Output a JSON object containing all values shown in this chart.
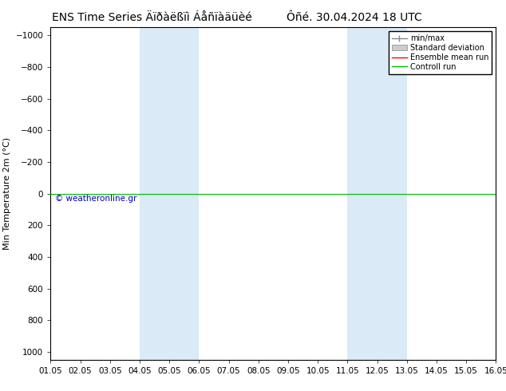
{
  "title_left": "ENS Time Series Äïðàëßïì Áåñïàäüèé",
  "title_right": "Ôñé. 30.04.2024 18 UTC",
  "ylabel": "Min Temperature 2m (°C)",
  "xlim_start": 0,
  "xlim_end": 15,
  "ylim_bottom": 1050,
  "ylim_top": -1050,
  "yticks": [
    -1000,
    -800,
    -600,
    -400,
    -200,
    0,
    200,
    400,
    600,
    800,
    1000
  ],
  "xtick_labels": [
    "01.05",
    "02.05",
    "03.05",
    "04.05",
    "05.05",
    "06.05",
    "07.05",
    "08.05",
    "09.05",
    "10.05",
    "11.05",
    "12.05",
    "13.05",
    "14.05",
    "15.05",
    "16.05"
  ],
  "shade_regions": [
    {
      "xstart": 3,
      "xend": 5,
      "color": "#daeaf6"
    },
    {
      "xstart": 10,
      "xend": 12,
      "color": "#daeaf6"
    }
  ],
  "control_run_y": 0,
  "control_run_color": "#00bb00",
  "ensemble_mean_color": "#ff0000",
  "watermark": "© weatheronline.gr",
  "watermark_color": "#0000cc",
  "background_color": "#ffffff",
  "plot_bg_color": "#ffffff",
  "legend_entries": [
    "min/max",
    "Standard deviation",
    "Ensemble mean run",
    "Controll run"
  ],
  "legend_colors": [
    "#aaaaaa",
    "#cccccc",
    "#ff0000",
    "#00bb00"
  ],
  "title_fontsize": 10,
  "axis_fontsize": 8,
  "tick_fontsize": 7.5
}
